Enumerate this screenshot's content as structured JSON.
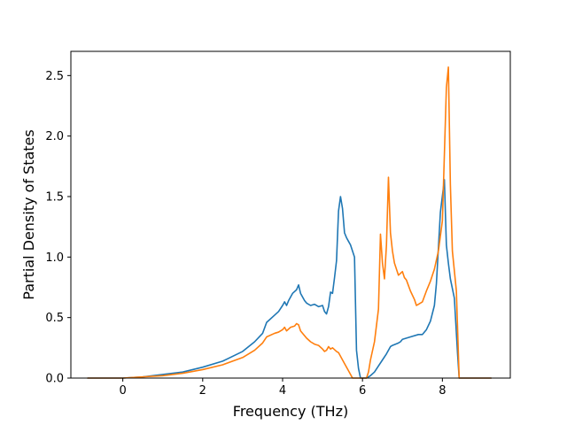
{
  "chart_data": {
    "type": "line",
    "title": "",
    "xlabel": "Frequency (THz)",
    "ylabel": "Partial Density of States",
    "xlim": [
      -1.3,
      9.7
    ],
    "ylim": [
      0,
      2.7
    ],
    "xticks": [
      0,
      2,
      4,
      6,
      8
    ],
    "xtick_labels": [
      "0",
      "2",
      "4",
      "6",
      "8"
    ],
    "yticks": [
      0.0,
      0.5,
      1.0,
      1.5,
      2.0,
      2.5
    ],
    "ytick_labels": [
      "0.0",
      "0.5",
      "1.0",
      "1.5",
      "2.0",
      "2.5"
    ],
    "grid": false,
    "legend": "none",
    "series": [
      {
        "color": "#1f77b4",
        "x": [
          -0.88,
          0.0,
          0.5,
          1.0,
          1.5,
          2.0,
          2.5,
          3.0,
          3.3,
          3.5,
          3.6,
          3.8,
          3.9,
          4.0,
          4.05,
          4.1,
          4.15,
          4.25,
          4.35,
          4.4,
          4.45,
          4.55,
          4.6,
          4.7,
          4.8,
          4.9,
          5.0,
          5.05,
          5.1,
          5.15,
          5.2,
          5.25,
          5.3,
          5.35,
          5.4,
          5.45,
          5.5,
          5.55,
          5.6,
          5.65,
          5.7,
          5.8,
          5.85,
          5.9,
          5.95,
          6.0,
          6.1,
          6.2,
          6.3,
          6.4,
          6.5,
          6.6,
          6.7,
          6.75,
          6.9,
          6.95,
          7.0,
          7.2,
          7.4,
          7.5,
          7.6,
          7.7,
          7.8,
          7.85,
          7.95,
          8.05,
          8.1,
          8.15,
          8.2,
          8.3,
          8.38,
          8.42,
          9.22
        ],
        "y": [
          0.0,
          0.0,
          0.01,
          0.03,
          0.05,
          0.09,
          0.14,
          0.22,
          0.3,
          0.37,
          0.46,
          0.52,
          0.55,
          0.6,
          0.63,
          0.6,
          0.64,
          0.7,
          0.73,
          0.77,
          0.7,
          0.64,
          0.62,
          0.6,
          0.61,
          0.59,
          0.6,
          0.55,
          0.53,
          0.59,
          0.71,
          0.7,
          0.83,
          0.97,
          1.38,
          1.5,
          1.4,
          1.2,
          1.16,
          1.13,
          1.1,
          1.0,
          0.23,
          0.08,
          0.0,
          0.0,
          0.0,
          0.02,
          0.05,
          0.1,
          0.15,
          0.2,
          0.26,
          0.27,
          0.29,
          0.3,
          0.32,
          0.34,
          0.36,
          0.36,
          0.4,
          0.47,
          0.6,
          0.78,
          1.37,
          1.64,
          1.1,
          0.95,
          0.82,
          0.66,
          0.2,
          0.0,
          0.0
        ]
      },
      {
        "color": "#ff7f0e",
        "x": [
          -0.88,
          0.0,
          0.5,
          1.0,
          1.5,
          2.0,
          2.5,
          3.0,
          3.3,
          3.5,
          3.6,
          3.8,
          3.9,
          4.0,
          4.05,
          4.1,
          4.2,
          4.3,
          4.35,
          4.4,
          4.45,
          4.6,
          4.7,
          4.8,
          4.9,
          5.0,
          5.05,
          5.1,
          5.15,
          5.2,
          5.25,
          5.35,
          5.4,
          5.45,
          5.55,
          5.65,
          5.75,
          5.85,
          5.9,
          5.95,
          6.0,
          6.1,
          6.15,
          6.2,
          6.3,
          6.4,
          6.45,
          6.5,
          6.55,
          6.6,
          6.65,
          6.7,
          6.75,
          6.8,
          6.9,
          7.0,
          7.05,
          7.1,
          7.2,
          7.3,
          7.35,
          7.4,
          7.5,
          7.6,
          7.7,
          7.8,
          7.9,
          8.0,
          8.05,
          8.1,
          8.15,
          8.2,
          8.25,
          8.35,
          8.42,
          9.22
        ],
        "y": [
          0.0,
          0.0,
          0.01,
          0.02,
          0.04,
          0.07,
          0.11,
          0.17,
          0.23,
          0.29,
          0.34,
          0.37,
          0.38,
          0.4,
          0.42,
          0.39,
          0.42,
          0.43,
          0.45,
          0.44,
          0.39,
          0.33,
          0.3,
          0.28,
          0.27,
          0.24,
          0.22,
          0.23,
          0.26,
          0.24,
          0.25,
          0.22,
          0.21,
          0.18,
          0.12,
          0.06,
          0.0,
          0.0,
          0.0,
          0.0,
          0.0,
          0.0,
          0.05,
          0.15,
          0.3,
          0.57,
          1.19,
          0.95,
          0.82,
          1.1,
          1.66,
          1.2,
          1.05,
          0.95,
          0.85,
          0.88,
          0.83,
          0.81,
          0.72,
          0.65,
          0.6,
          0.61,
          0.63,
          0.72,
          0.8,
          0.9,
          1.05,
          1.3,
          1.85,
          2.4,
          2.57,
          1.6,
          1.05,
          0.72,
          0.0,
          0.0
        ]
      }
    ]
  }
}
